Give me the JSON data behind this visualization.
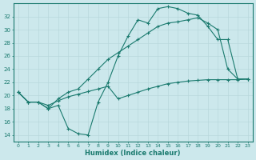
{
  "xlabel": "Humidex (Indice chaleur)",
  "bg_color": "#cce8ec",
  "grid_color": "#b8d8dc",
  "line_color": "#1a7a6e",
  "xlim": [
    -0.5,
    23.5
  ],
  "ylim": [
    13,
    34
  ],
  "yticks": [
    14,
    16,
    18,
    20,
    22,
    24,
    26,
    28,
    30,
    32
  ],
  "xticks": [
    0,
    1,
    2,
    3,
    4,
    5,
    6,
    7,
    8,
    9,
    10,
    11,
    12,
    13,
    14,
    15,
    16,
    17,
    18,
    19,
    20,
    21,
    22,
    23
  ],
  "line1_x": [
    0,
    1,
    2,
    3,
    4,
    5,
    6,
    7,
    8,
    9,
    10,
    11,
    12,
    13,
    14,
    15,
    16,
    17,
    18,
    19,
    20,
    21,
    22,
    23
  ],
  "line1_y": [
    20.5,
    19.0,
    19.0,
    18.0,
    18.5,
    15.0,
    14.2,
    14.0,
    19.0,
    22.0,
    26.0,
    29.0,
    31.5,
    31.0,
    33.2,
    33.5,
    33.2,
    32.5,
    32.2,
    30.5,
    28.5,
    28.5,
    22.5,
    22.5
  ],
  "line2_x": [
    0,
    1,
    2,
    3,
    4,
    5,
    6,
    7,
    8,
    9,
    10,
    11,
    12,
    13,
    14,
    15,
    16,
    17,
    18,
    19,
    20,
    21,
    22,
    23
  ],
  "line2_y": [
    20.5,
    19.0,
    19.0,
    18.5,
    19.2,
    19.8,
    20.2,
    20.6,
    21.0,
    21.4,
    19.5,
    20.0,
    20.5,
    21.0,
    21.4,
    21.8,
    22.0,
    22.2,
    22.3,
    22.4,
    22.4,
    22.4,
    22.4,
    22.5
  ],
  "line3_x": [
    0,
    1,
    2,
    3,
    4,
    5,
    6,
    7,
    8,
    9,
    10,
    11,
    12,
    13,
    14,
    15,
    16,
    17,
    18,
    19,
    20,
    21,
    22,
    23
  ],
  "line3_y": [
    20.5,
    19.0,
    19.0,
    18.0,
    19.5,
    20.5,
    21.0,
    22.5,
    24.0,
    25.5,
    26.5,
    27.5,
    28.5,
    29.5,
    30.5,
    31.0,
    31.2,
    31.5,
    31.8,
    31.0,
    30.0,
    24.0,
    22.5,
    22.5
  ]
}
